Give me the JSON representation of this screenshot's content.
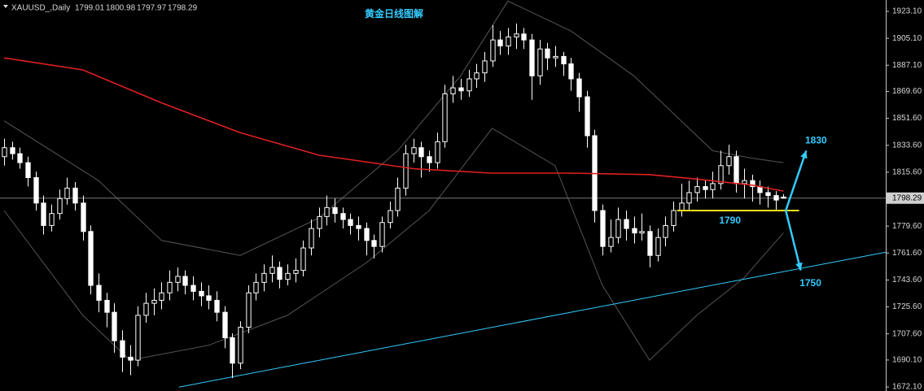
{
  "chart_data": {
    "type": "candlestick",
    "title": "黄金日线图解",
    "header": {
      "symbol": "XAUUSD_,Daily",
      "open": 1799.01,
      "high": 1800.98,
      "low": 1797.97,
      "close": 1798.29
    },
    "open": [
      1826,
      1832,
      1828,
      1822,
      1812,
      1795,
      1780,
      1788,
      1798,
      1805,
      1795,
      1776,
      1740,
      1730,
      1722,
      1703,
      1692,
      1690,
      1720,
      1728,
      1730,
      1735,
      1742,
      1746,
      1740,
      1736,
      1733,
      1730,
      1722,
      1705,
      1688,
      1712,
      1735,
      1742,
      1748,
      1752,
      1744,
      1748,
      1750,
      1765,
      1778,
      1786,
      1792,
      1788,
      1784,
      1780,
      1778,
      1770,
      1766,
      1782,
      1790,
      1805,
      1828,
      1832,
      1826,
      1822,
      1836,
      1868,
      1872,
      1870,
      1878,
      1882,
      1890,
      1904,
      1900,
      1906,
      1908,
      1904,
      1880,
      1898,
      1892,
      1893,
      1888,
      1878,
      1866,
      1840,
      1790,
      1766,
      1772,
      1784,
      1778,
      1775,
      1776,
      1760,
      1772,
      1780,
      1790,
      1795,
      1802,
      1806,
      1804,
      1808,
      1820,
      1826,
      1808,
      1810,
      1806,
      1802,
      1800,
      1799.01
    ],
    "high": [
      1838,
      1836,
      1832,
      1826,
      1816,
      1800,
      1794,
      1804,
      1812,
      1809,
      1800,
      1780,
      1748,
      1735,
      1728,
      1710,
      1700,
      1726,
      1735,
      1738,
      1742,
      1750,
      1752,
      1750,
      1746,
      1742,
      1740,
      1736,
      1726,
      1708,
      1716,
      1740,
      1748,
      1754,
      1760,
      1756,
      1754,
      1758,
      1770,
      1784,
      1792,
      1800,
      1798,
      1792,
      1788,
      1786,
      1782,
      1774,
      1786,
      1796,
      1812,
      1834,
      1838,
      1836,
      1830,
      1842,
      1874,
      1880,
      1878,
      1884,
      1888,
      1896,
      1914,
      1910,
      1912,
      1915,
      1912,
      1908,
      1904,
      1902,
      1900,
      1896,
      1892,
      1882,
      1870,
      1844,
      1794,
      1784,
      1792,
      1790,
      1786,
      1788,
      1780,
      1778,
      1786,
      1796,
      1808,
      1810,
      1812,
      1810,
      1816,
      1830,
      1834,
      1830,
      1818,
      1814,
      1810,
      1806,
      1803,
      1800.98
    ],
    "low": [
      1820,
      1824,
      1818,
      1806,
      1790,
      1774,
      1776,
      1784,
      1794,
      1790,
      1770,
      1734,
      1722,
      1712,
      1695,
      1682,
      1680,
      1686,
      1715,
      1720,
      1724,
      1730,
      1736,
      1734,
      1730,
      1726,
      1724,
      1716,
      1698,
      1678,
      1684,
      1708,
      1730,
      1736,
      1742,
      1738,
      1740,
      1742,
      1746,
      1760,
      1772,
      1780,
      1782,
      1778,
      1774,
      1770,
      1760,
      1758,
      1762,
      1778,
      1786,
      1800,
      1822,
      1812,
      1816,
      1818,
      1832,
      1862,
      1864,
      1866,
      1872,
      1876,
      1886,
      1894,
      1894,
      1898,
      1898,
      1864,
      1874,
      1884,
      1886,
      1880,
      1870,
      1856,
      1832,
      1782,
      1760,
      1762,
      1768,
      1770,
      1768,
      1770,
      1752,
      1756,
      1766,
      1776,
      1786,
      1790,
      1796,
      1798,
      1798,
      1804,
      1814,
      1802,
      1798,
      1796,
      1794,
      1792,
      1790,
      1797.97
    ],
    "close": [
      1832,
      1828,
      1822,
      1812,
      1795,
      1780,
      1788,
      1798,
      1805,
      1795,
      1776,
      1740,
      1730,
      1722,
      1703,
      1692,
      1690,
      1720,
      1728,
      1730,
      1735,
      1742,
      1746,
      1740,
      1736,
      1733,
      1730,
      1722,
      1705,
      1688,
      1712,
      1735,
      1742,
      1748,
      1752,
      1744,
      1748,
      1750,
      1765,
      1778,
      1786,
      1792,
      1788,
      1784,
      1780,
      1778,
      1770,
      1766,
      1782,
      1790,
      1805,
      1828,
      1832,
      1826,
      1822,
      1836,
      1868,
      1872,
      1870,
      1878,
      1882,
      1890,
      1904,
      1900,
      1906,
      1908,
      1904,
      1880,
      1898,
      1892,
      1893,
      1888,
      1878,
      1866,
      1840,
      1790,
      1766,
      1772,
      1784,
      1778,
      1775,
      1776,
      1760,
      1772,
      1780,
      1790,
      1795,
      1802,
      1806,
      1804,
      1808,
      1820,
      1826,
      1808,
      1810,
      1806,
      1802,
      1800,
      1797,
      1798.29
    ],
    "up_color": "#000000",
    "down_color": "#ffffff",
    "wick_color": "#ffffff",
    "ma": {
      "color": "#e02020",
      "x": [
        0,
        10,
        20,
        30,
        40,
        52,
        62,
        72,
        82,
        88,
        95,
        99
      ],
      "values": [
        1892,
        1884,
        1862,
        1842,
        1827,
        1818,
        1815,
        1815,
        1814,
        1811,
        1807,
        1803
      ]
    },
    "bands": {
      "color": "#555555",
      "upper": {
        "x": [
          0,
          12,
          20,
          30,
          40,
          50,
          58,
          64,
          72,
          80,
          86,
          90,
          95,
          99
        ],
        "values": [
          1850,
          1810,
          1770,
          1760,
          1785,
          1830,
          1880,
          1930,
          1910,
          1880,
          1850,
          1830,
          1825,
          1822
        ]
      },
      "lower": {
        "x": [
          0,
          10,
          16,
          26,
          36,
          46,
          54,
          62,
          70,
          76,
          82,
          88,
          94,
          99
        ],
        "values": [
          1790,
          1720,
          1690,
          1700,
          1720,
          1755,
          1790,
          1845,
          1820,
          1740,
          1690,
          1720,
          1745,
          1775
        ]
      }
    },
    "trendline": {
      "color": "#33ccff",
      "x": [
        22.2,
        112
      ],
      "y": [
        1672,
        1762.2
      ]
    },
    "support": {
      "color": "#f0e020",
      "value": 1790,
      "x": [
        85.5,
        101
      ]
    },
    "targets": [
      {
        "value": 1830,
        "x": 101.9
      },
      {
        "value": 1750,
        "x": 101.2
      }
    ],
    "current_price": {
      "value": 1798.29,
      "label": "1798.29"
    },
    "xlim": [
      -0.517,
      112
    ],
    "ylim": [
      1669.4,
      1930.7
    ],
    "yticks": [
      {
        "value": 1923.1,
        "label": "1923.10"
      },
      {
        "value": 1905.1,
        "label": "1905.10"
      },
      {
        "value": 1887.1,
        "label": "1887.10"
      },
      {
        "value": 1869.6,
        "label": "1869.60"
      },
      {
        "value": 1851.6,
        "label": "1851.60"
      },
      {
        "value": 1833.6,
        "label": "1833.60"
      },
      {
        "value": 1815.6,
        "label": "1815.60"
      },
      {
        "value": 1779.6,
        "label": "1779.60"
      },
      {
        "value": 1761.6,
        "label": "1761.60"
      },
      {
        "value": 1743.6,
        "label": "1743.60"
      },
      {
        "value": 1725.6,
        "label": "1725.60"
      },
      {
        "value": 1707.6,
        "label": "1707.60"
      },
      {
        "value": 1690.1,
        "label": "1690.10"
      },
      {
        "value": 1672.1,
        "label": "1672.10"
      }
    ]
  }
}
